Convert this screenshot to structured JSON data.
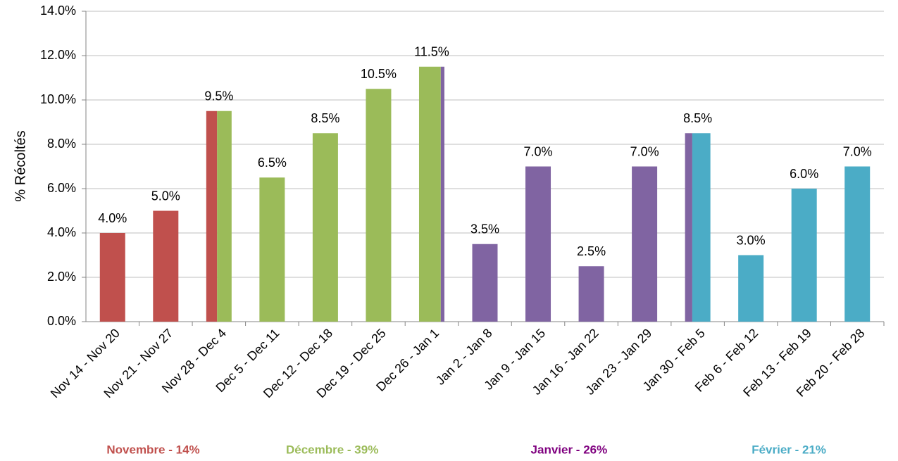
{
  "chart_data": {
    "type": "bar",
    "y_label": "% Récoltés",
    "categories": [
      "Nov 14 - Nov 20",
      "Nov 21 - Nov 27",
      "Nov 28 - Dec 4",
      "Dec 5 - Dec 11",
      "Dec 12 - Dec 18",
      "Dec 19 - Dec 25",
      "Dec 26 - Jan 1",
      "Jan 2 - Jan 8",
      "Jan 9 - Jan 15",
      "Jan 16 - Jan 22",
      "Jan 23 - Jan 29",
      "Jan 30 - Feb 5",
      "Feb 6 - Feb 12",
      "Feb 13 - Feb 19",
      "Feb 20 - Feb 28"
    ],
    "values": [
      4,
      5,
      9.5,
      6.5,
      8.5,
      10.5,
      11.5,
      3.5,
      7,
      2.5,
      7,
      8.5,
      3,
      6,
      7
    ],
    "value_labels": [
      "4.0%",
      "5.0%",
      "9.5%",
      "6.5%",
      "8.5%",
      "10.5%",
      "11.5%",
      "3.5%",
      "7.0%",
      "2.5%",
      "7.0%",
      "8.5%",
      "3.0%",
      "6.0%",
      "7.0%"
    ],
    "series": [
      {
        "name": "Novembre - 14%",
        "color": "#c0504d",
        "days": [
          7,
          7,
          3,
          0,
          0,
          0,
          0,
          0,
          0,
          0,
          0,
          0,
          0,
          0,
          0
        ]
      },
      {
        "name": "Décembre - 39%",
        "color": "#9bbb59",
        "days": [
          0,
          0,
          4,
          7,
          7,
          7,
          6,
          0,
          0,
          0,
          0,
          0,
          0,
          0,
          0
        ]
      },
      {
        "name": "Janvier - 26%",
        "color": "#8064a2",
        "label_color": "#7f007f",
        "days": [
          0,
          0,
          0,
          0,
          0,
          0,
          1,
          7,
          7,
          7,
          7,
          2,
          0,
          0,
          0
        ]
      },
      {
        "name": "Février - 21%",
        "color": "#4bacc6",
        "days": [
          0,
          0,
          0,
          0,
          0,
          0,
          0,
          0,
          0,
          0,
          0,
          5,
          7,
          7,
          9
        ]
      }
    ],
    "ylim": [
      0,
      14
    ],
    "yticks": [
      {
        "value": 0,
        "label": "0.0%"
      },
      {
        "value": 2,
        "label": "2.0%"
      },
      {
        "value": 4,
        "label": "4.0%"
      },
      {
        "value": 6,
        "label": "6.0%"
      },
      {
        "value": 8,
        "label": "8.0%"
      },
      {
        "value": 10,
        "label": "10.0%"
      },
      {
        "value": 12,
        "label": "12.0%"
      },
      {
        "value": 14,
        "label": "14.0%"
      }
    ],
    "grid": true
  }
}
